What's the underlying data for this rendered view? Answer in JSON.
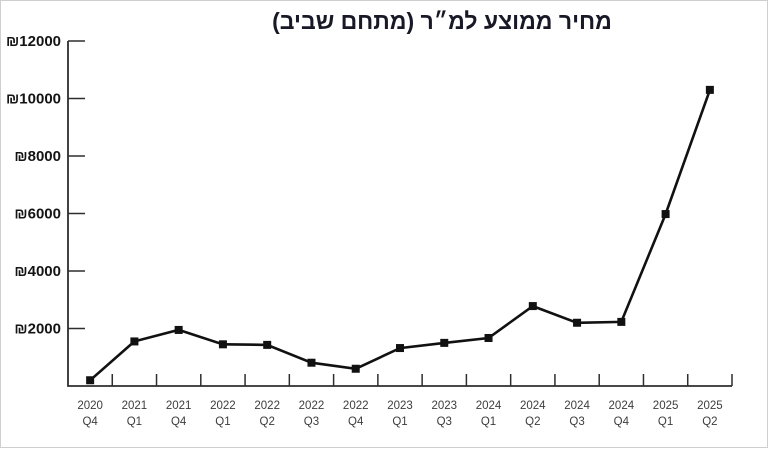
{
  "page": {
    "background": "#ffffff",
    "border_color": "#cfcfcf"
  },
  "chart_data": {
    "type": "line",
    "title": "מחיר ממוצע למ״ר (מתחם שביב)",
    "categories": [
      "2020 Q4",
      "2021 Q1",
      "2021 Q4",
      "2022 Q1",
      "2022 Q2",
      "2022 Q3",
      "2022 Q4",
      "2023 Q1",
      "2023 Q3",
      "2024 Q1",
      "2024 Q2",
      "2024 Q3",
      "2024 Q4",
      "2025 Q1",
      "2025 Q2"
    ],
    "values": [
      200,
      1550,
      1950,
      1450,
      1430,
      810,
      600,
      1320,
      1500,
      1670,
      2780,
      2200,
      2230,
      5980,
      10300
    ],
    "currency_symbol": "₪",
    "ylim": [
      0,
      12000
    ],
    "y_tick_step": 2000,
    "y_tick_labels": [
      "₪2000",
      "₪4000",
      "₪6000",
      "₪8000",
      "₪10000",
      "₪12000"
    ],
    "xlabel": "",
    "ylabel": "",
    "grid": false,
    "legend": "none",
    "marker": "square",
    "line_color": "#111111",
    "marker_color": "#111111",
    "axis_color": "#2e2e2e",
    "title_color": "#181826",
    "tick_label_color": "#3d3d3d"
  }
}
